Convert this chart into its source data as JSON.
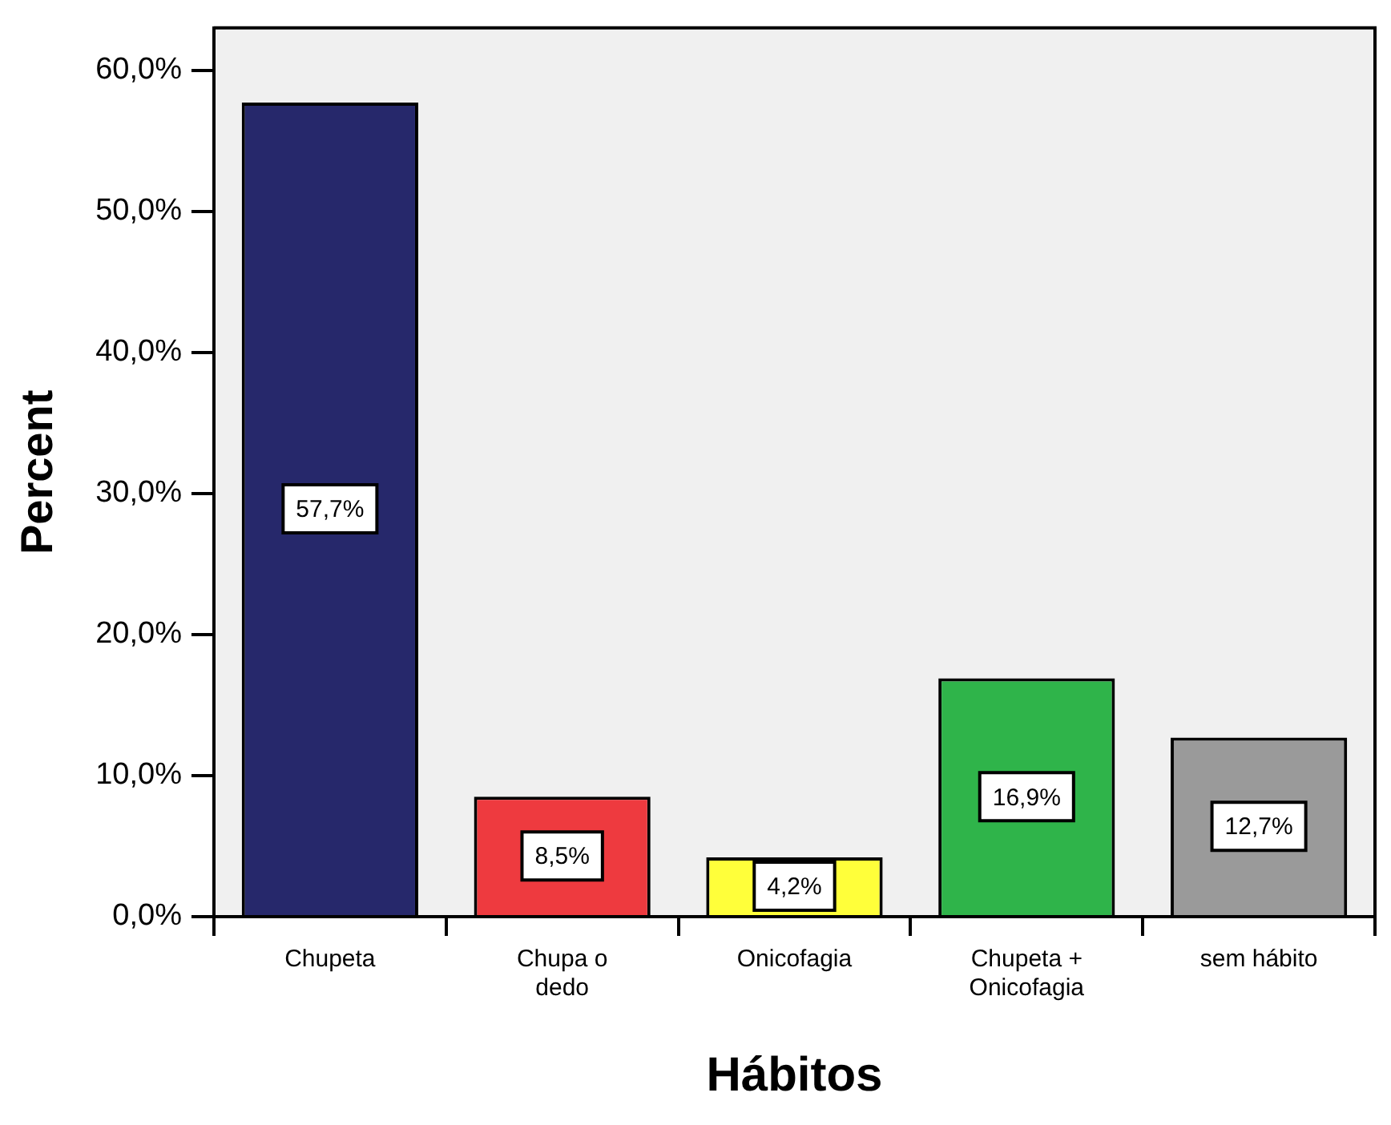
{
  "chart_data": {
    "type": "bar",
    "xlabel": "Hábitos",
    "ylabel": "Percent",
    "categories": [
      "Chupeta",
      "Chupa o dedo",
      "Onicofagia",
      "Chupeta + Onicofagia",
      "sem hábito"
    ],
    "values": [
      57.7,
      8.5,
      4.2,
      16.9,
      12.7
    ],
    "colors": [
      "#26286b",
      "#ee3a3f",
      "#ffff3a",
      "#2fb44a",
      "#9a9a9a"
    ],
    "value_labels": [
      "57,7%",
      "8,5%",
      "4,2%",
      "16,9%",
      "12,7%"
    ],
    "ylim": [
      0,
      63
    ],
    "yticks": [
      {
        "value": 0,
        "label": "0,0%"
      },
      {
        "value": 10,
        "label": "10,0%"
      },
      {
        "value": 20,
        "label": "20,0%"
      },
      {
        "value": 30,
        "label": "30,0%"
      },
      {
        "value": 40,
        "label": "40,0%"
      },
      {
        "value": 50,
        "label": "50,0%"
      },
      {
        "value": 60,
        "label": "60,0%"
      }
    ],
    "grid": false,
    "legend": false
  }
}
